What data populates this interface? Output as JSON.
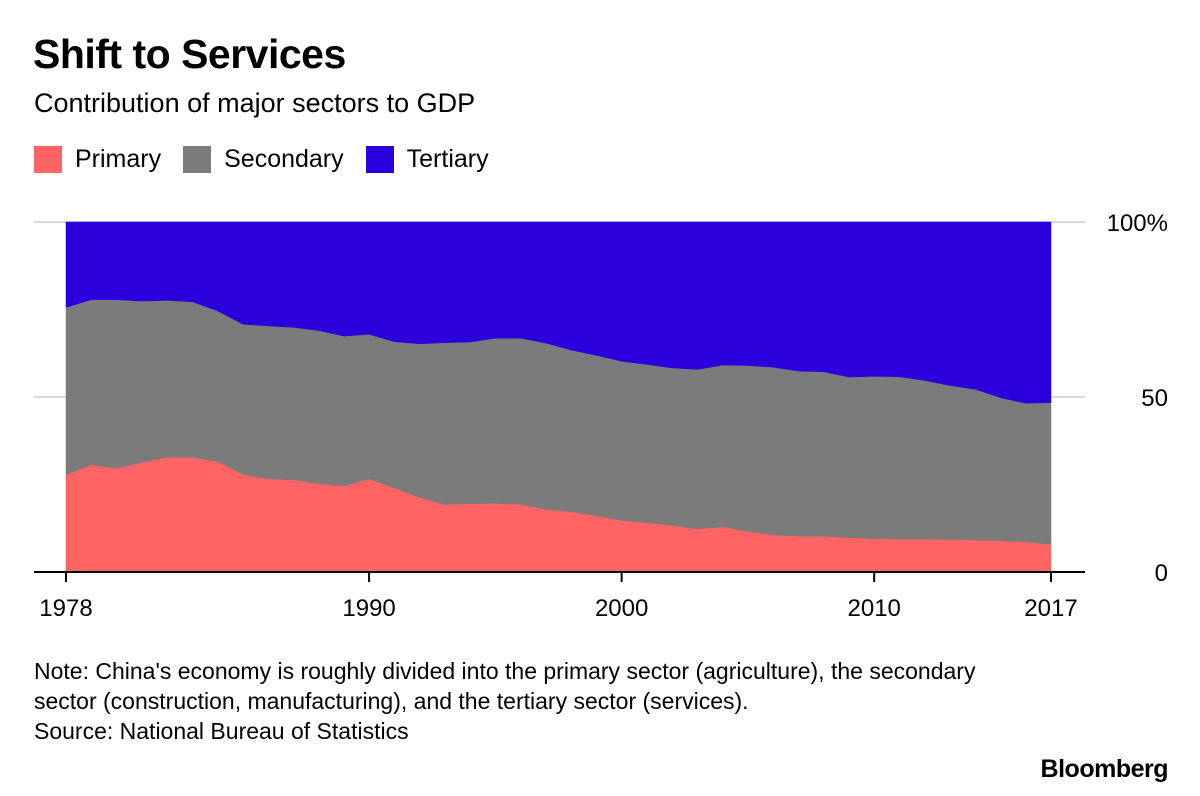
{
  "title": "Shift to Services",
  "subtitle": "Contribution of major sectors to GDP",
  "legend": [
    {
      "label": "Primary",
      "color": "#ff6464"
    },
    {
      "label": "Secondary",
      "color": "#7b7b7b"
    },
    {
      "label": "Tertiary",
      "color": "#2c00dc"
    }
  ],
  "note": "Note: China's economy is roughly divided into the primary sector (agriculture), the secondary sector (construction, manufacturing), and the tertiary sector (services).",
  "source": "Source: National Bureau of Statistics",
  "brand": "Bloomberg",
  "chart_data": {
    "type": "area",
    "stacked": true,
    "title": "Shift to Services",
    "subtitle": "Contribution of major sectors to GDP",
    "x": [
      1978,
      1979,
      1980,
      1981,
      1982,
      1983,
      1984,
      1985,
      1986,
      1987,
      1988,
      1989,
      1990,
      1991,
      1992,
      1993,
      1994,
      1995,
      1996,
      1997,
      1998,
      1999,
      2000,
      2001,
      2002,
      2003,
      2004,
      2005,
      2006,
      2007,
      2008,
      2009,
      2010,
      2011,
      2012,
      2013,
      2014,
      2015,
      2016,
      2017
    ],
    "series": [
      {
        "name": "Primary",
        "color": "#ff6464",
        "values": [
          27.7,
          30.7,
          29.6,
          31.3,
          32.8,
          32.8,
          31.5,
          27.9,
          26.6,
          26.3,
          25.2,
          24.6,
          26.6,
          24.0,
          21.3,
          19.3,
          19.5,
          19.6,
          19.3,
          17.9,
          17.2,
          16.1,
          14.7,
          14.1,
          13.3,
          12.3,
          12.9,
          11.6,
          10.6,
          10.2,
          10.2,
          9.8,
          9.5,
          9.4,
          9.4,
          9.3,
          9.1,
          8.9,
          8.6,
          7.9
        ]
      },
      {
        "name": "Secondary",
        "color": "#7b7b7b",
        "values": [
          47.9,
          47.1,
          48.2,
          46.1,
          44.8,
          44.4,
          43.1,
          42.9,
          43.7,
          43.6,
          43.8,
          42.8,
          41.3,
          41.8,
          43.9,
          46.2,
          46.2,
          47.2,
          47.5,
          47.5,
          46.2,
          45.8,
          45.5,
          45.2,
          45.0,
          45.6,
          46.2,
          47.4,
          47.9,
          47.2,
          47.0,
          45.9,
          46.4,
          46.4,
          45.3,
          44.0,
          43.1,
          40.9,
          39.6,
          40.5
        ]
      },
      {
        "name": "Tertiary",
        "color": "#2c00dc",
        "values": [
          24.4,
          22.2,
          22.2,
          22.6,
          22.4,
          22.8,
          25.4,
          29.2,
          29.7,
          30.1,
          31.0,
          32.6,
          32.1,
          34.2,
          34.8,
          34.5,
          34.3,
          33.2,
          33.2,
          34.6,
          36.6,
          38.1,
          39.8,
          40.7,
          41.7,
          42.1,
          40.9,
          41.0,
          41.5,
          42.6,
          42.8,
          44.3,
          44.1,
          44.2,
          45.3,
          46.7,
          47.8,
          50.2,
          51.8,
          51.6
        ]
      }
    ],
    "x_ticks": [
      "1978",
      "1990",
      "2000",
      "2010",
      "2017"
    ],
    "y_ticks": [
      "0",
      "50",
      "100%"
    ],
    "ylim": [
      0,
      100
    ],
    "xlim": [
      1978,
      2017
    ],
    "grid": true,
    "y_axis_position": "right"
  }
}
